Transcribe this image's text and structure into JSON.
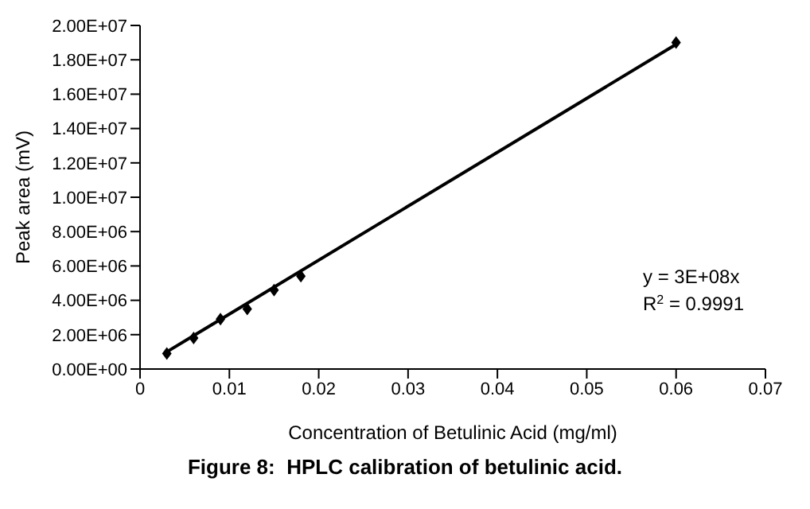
{
  "chart_data": {
    "type": "scatter",
    "title": "Figure 8:  HPLC calibration of betulinic acid.",
    "xlabel": "Concentration of Betulinic Acid (mg/ml)",
    "ylabel": "Peak area (mV)",
    "series": [
      {
        "color": "#000000",
        "marker": "diamond",
        "x": [
          0.003,
          0.006,
          0.009,
          0.012,
          0.015,
          0.018,
          0.06
        ],
        "values": [
          900000,
          1800000,
          2900000,
          3500000,
          4600000,
          5400000,
          19000000
        ]
      },
      {
        "type": "line",
        "color": "#000000",
        "marker": "none",
        "x": [
          0.003,
          0.06
        ],
        "values": [
          1000000,
          18900000
        ]
      }
    ],
    "xlim": [
      0,
      0.07
    ],
    "xticks": [
      0,
      0.01,
      0.02,
      0.03,
      0.04,
      0.05,
      0.06,
      0.07
    ],
    "ylim": [
      0,
      20000000
    ],
    "yticks": [
      {
        "value": 0,
        "label": "0.00E+00"
      },
      {
        "value": 2000000,
        "label": "2.00E+06"
      },
      {
        "value": 4000000,
        "label": "4.00E+06"
      },
      {
        "value": 6000000,
        "label": "6.00E+06"
      },
      {
        "value": 8000000,
        "label": "8.00E+06"
      },
      {
        "value": 10000000,
        "label": "1.00E+07"
      },
      {
        "value": 12000000,
        "label": "1.20E+07"
      },
      {
        "value": 14000000,
        "label": "1.40E+07"
      },
      {
        "value": 16000000,
        "label": "1.60E+07"
      },
      {
        "value": 18000000,
        "label": "1.80E+07"
      },
      {
        "value": 20000000,
        "label": "2.00E+07"
      }
    ],
    "annotations": [
      "y = 3E+08x",
      "R$^{2}$ = 0.9991"
    ],
    "grid": false
  }
}
